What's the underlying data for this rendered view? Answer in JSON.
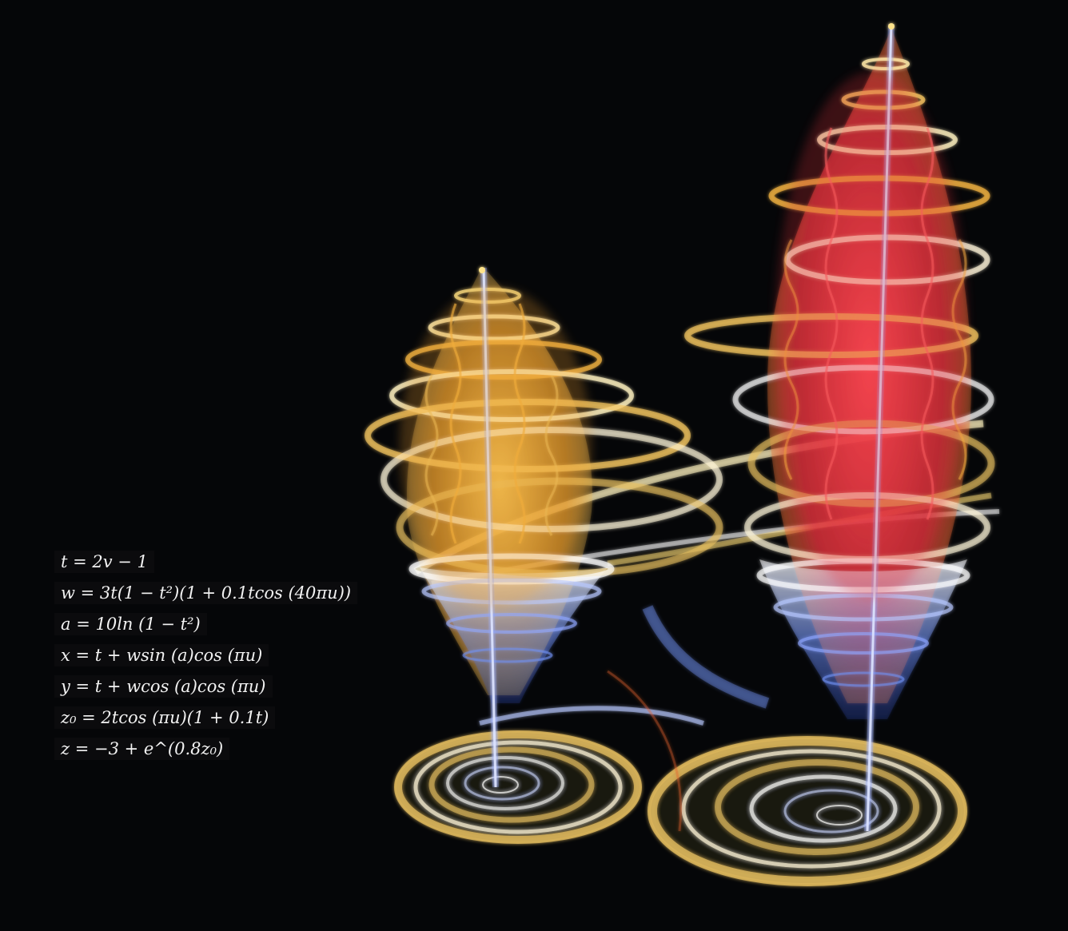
{
  "equations": [
    "t = 2v − 1",
    "w = 3t(1 − t²)(1 + 0.1tcos (40πu))",
    "a = 10ln (1 − t²)",
    "x = t + wsin (a)cos (πu)",
    "y = t + wcos (a)cos (πu)",
    "z₀ = 2tcos (πu)(1 + 0.1t)",
    "z = −3 + e^(0.8z₀)"
  ],
  "colors": {
    "background": "#050608",
    "red": "#e0303a",
    "orange": "#f0a030",
    "yellow": "#f2d66a",
    "white": "#ffffff",
    "blue": "#4a70e0"
  }
}
